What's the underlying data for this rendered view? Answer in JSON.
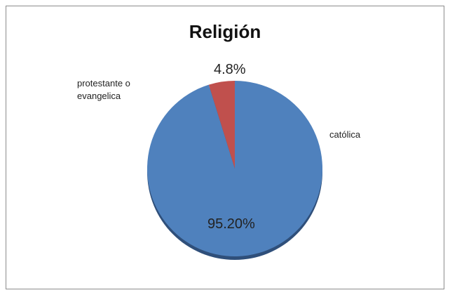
{
  "chart_data": {
    "type": "pie",
    "title": "Religión",
    "categories": [
      "católica",
      "protestante o evangelica"
    ],
    "values": [
      95.2,
      4.8
    ],
    "value_labels": [
      "95.20%",
      "4.8%"
    ],
    "colors": [
      "#4f81bd",
      "#c0504d"
    ]
  }
}
